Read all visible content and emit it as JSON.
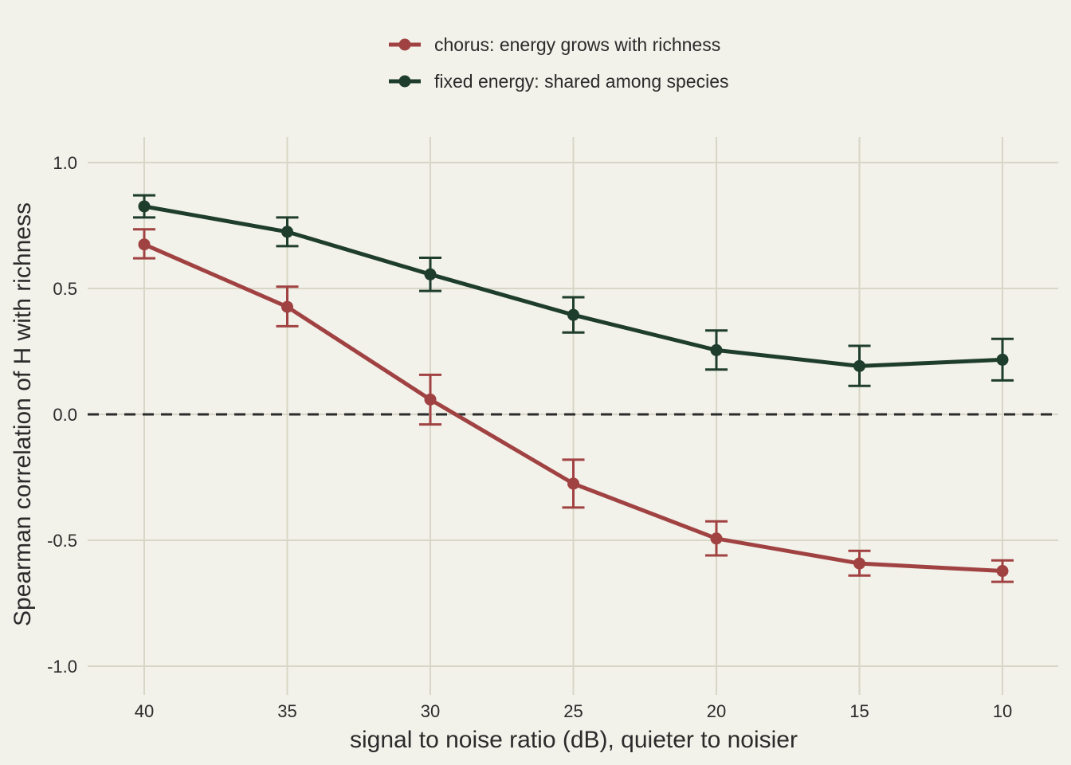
{
  "chart_data": {
    "type": "line",
    "title": "",
    "xlabel": "signal to noise ratio (dB), quieter to noisier",
    "ylabel": "Spearman correlation of H with richness",
    "x": [
      40,
      35,
      30,
      25,
      20,
      15,
      10
    ],
    "x_tick_labels": [
      "40",
      "35",
      "30",
      "25",
      "20",
      "15",
      "10"
    ],
    "x_reversed": true,
    "y_ticks": [
      1.0,
      0.5,
      0.0,
      -0.5,
      -1.0
    ],
    "y_tick_labels": [
      "1.0",
      "0.5",
      "0.0",
      "-0.5",
      "-1.0"
    ],
    "ylim": [
      -1.1,
      1.1
    ],
    "grid": true,
    "reference_line": {
      "y": 0.0,
      "style": "dashed",
      "color": "#2b2b2b"
    },
    "legend_position": "top-center",
    "series": [
      {
        "name": "chorus: energy grows with richness",
        "color": "#a14242",
        "values": [
          0.675,
          0.427,
          0.059,
          -0.275,
          -0.493,
          -0.592,
          -0.622
        ],
        "err_low": [
          0.62,
          0.35,
          -0.04,
          -0.37,
          -0.56,
          -0.64,
          -0.665
        ],
        "err_high": [
          0.735,
          0.507,
          0.157,
          -0.18,
          -0.425,
          -0.542,
          -0.58
        ]
      },
      {
        "name": "fixed energy: shared among species",
        "color": "#1f3d2c",
        "values": [
          0.826,
          0.725,
          0.556,
          0.395,
          0.255,
          0.192,
          0.217
        ],
        "err_low": [
          0.782,
          0.668,
          0.49,
          0.325,
          0.178,
          0.113,
          0.135
        ],
        "err_high": [
          0.87,
          0.782,
          0.622,
          0.465,
          0.333,
          0.272,
          0.3
        ]
      }
    ]
  }
}
